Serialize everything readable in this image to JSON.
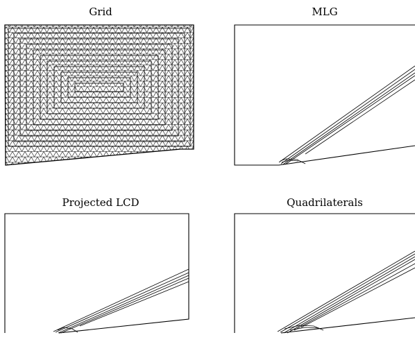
{
  "panels": [
    {
      "title": "Grid"
    },
    {
      "title": "MLG"
    },
    {
      "title": "Projected LCD"
    },
    {
      "title": "Quadrilaterals"
    }
  ]
}
